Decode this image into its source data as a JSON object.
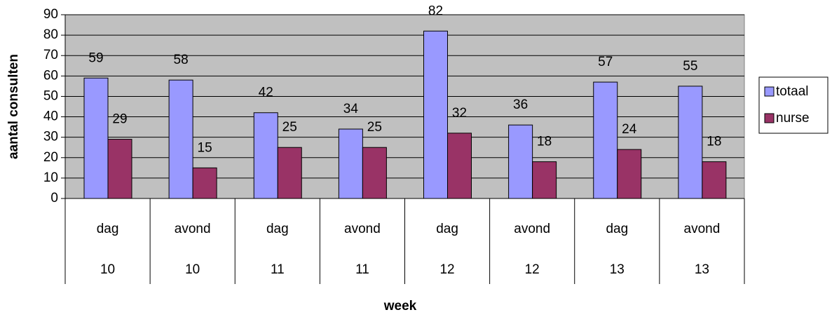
{
  "chart_data": {
    "type": "bar",
    "y_label": "aantal consulten",
    "x_label": "week",
    "categories": [
      "dag",
      "avond",
      "dag",
      "avond",
      "dag",
      "avond",
      "dag",
      "avond"
    ],
    "category_groups": [
      "10",
      "10",
      "11",
      "11",
      "12",
      "12",
      "13",
      "13"
    ],
    "series": [
      {
        "name": "totaal",
        "color": "#9999ff",
        "values": [
          59,
          58,
          42,
          34,
          82,
          36,
          57,
          55
        ]
      },
      {
        "name": "nurse",
        "color": "#993366",
        "values": [
          29,
          15,
          25,
          25,
          32,
          18,
          24,
          18
        ]
      }
    ],
    "ylim": [
      0,
      90
    ],
    "yticks": [
      0,
      10,
      20,
      30,
      40,
      50,
      60,
      70,
      80,
      90
    ],
    "grid": true,
    "legend": "right",
    "plot_background": "#c0c0c0"
  }
}
